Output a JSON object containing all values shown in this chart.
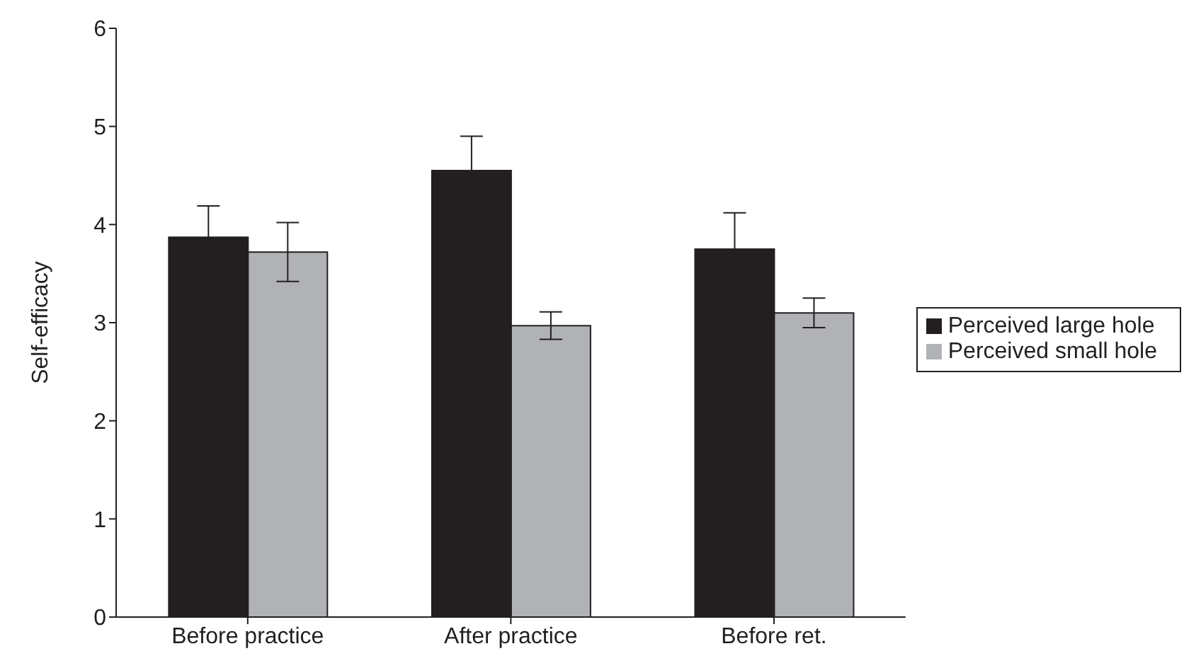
{
  "chart_data": {
    "type": "bar",
    "ylabel": "Self-efficacy",
    "categories": [
      "Before practice",
      "After practice",
      "Before ret."
    ],
    "series": [
      {
        "name": "Perceived large hole",
        "color": "#231f20",
        "values": [
          3.87,
          4.55,
          3.75
        ],
        "errors": [
          0.32,
          0.35,
          0.37
        ]
      },
      {
        "name": "Perceived small hole",
        "color": "#b1b2b6",
        "values": [
          3.72,
          2.97,
          3.1
        ],
        "errors": [
          0.3,
          0.14,
          0.15
        ]
      }
    ],
    "ylim": [
      0,
      6
    ],
    "yticks": [
      0,
      1,
      2,
      3,
      4,
      5,
      6
    ],
    "grid": false,
    "legend": "right"
  }
}
